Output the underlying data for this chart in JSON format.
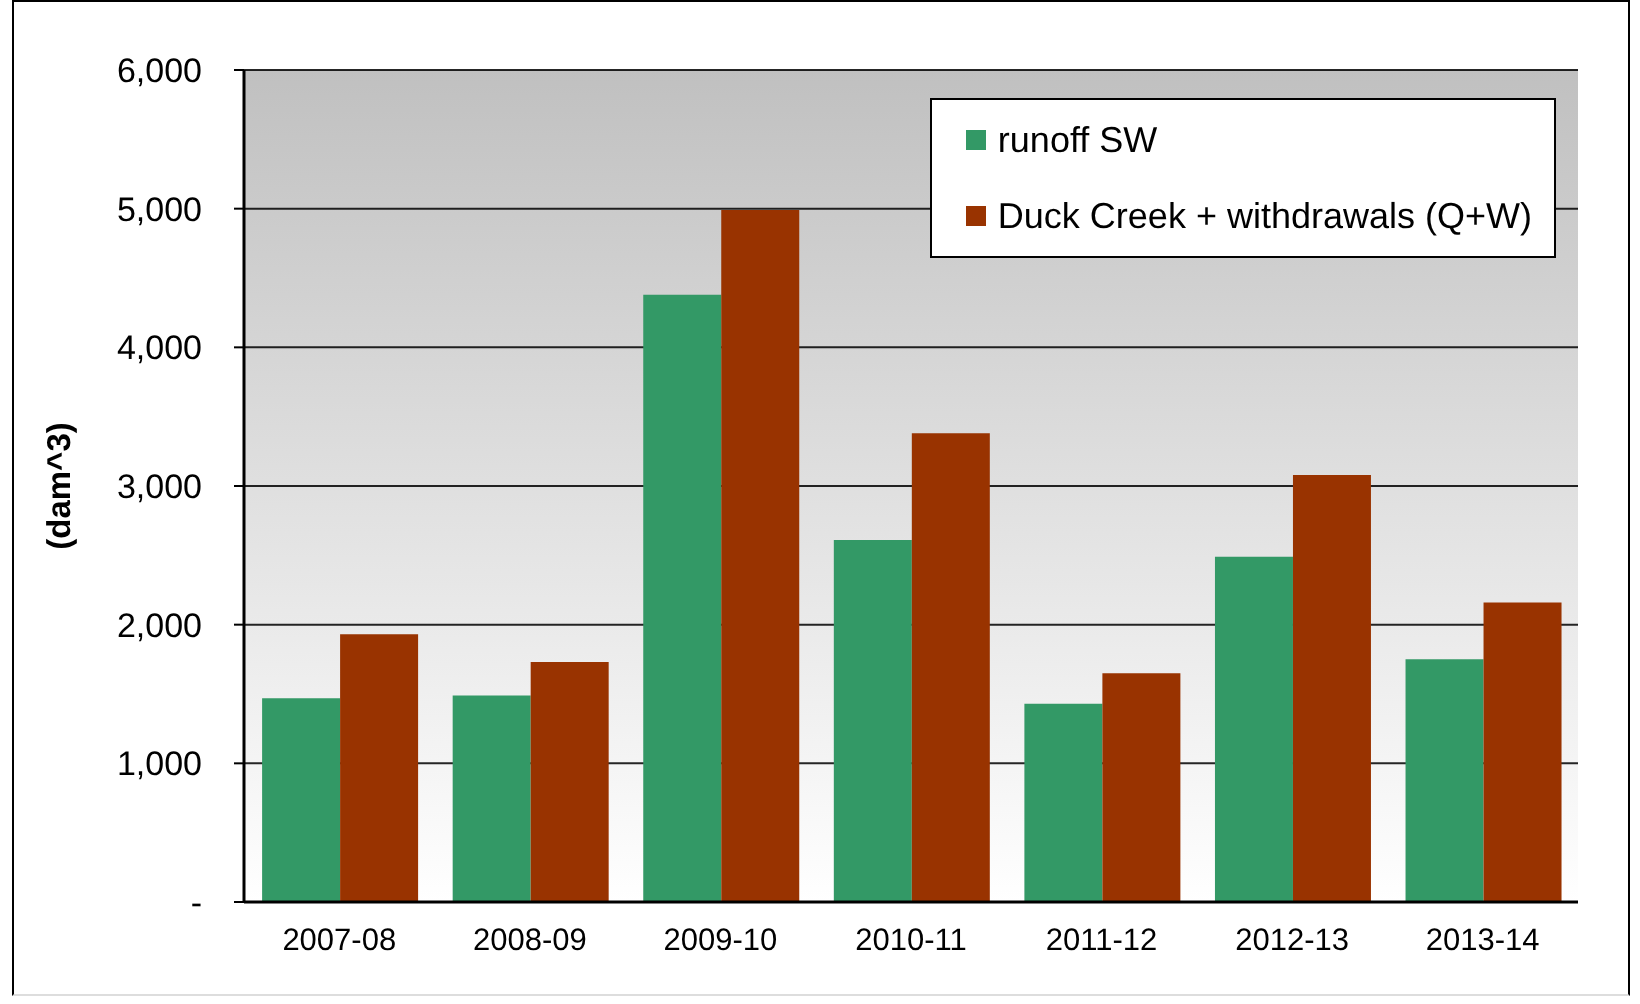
{
  "chart_data": {
    "type": "bar",
    "ylabel": "(dam^3)",
    "categories": [
      "2007-08",
      "2008-09",
      "2009-10",
      "2010-11",
      "2011-12",
      "2012-13",
      "2013-14"
    ],
    "series": [
      {
        "name": "runoff SW",
        "color": "#339966",
        "values": [
          1470,
          1490,
          4380,
          2610,
          1430,
          2490,
          1750
        ]
      },
      {
        "name": "Duck Creek + withdrawals (Q+W)",
        "color": "#993300",
        "values": [
          1930,
          1730,
          4990,
          3380,
          1650,
          3080,
          2160
        ]
      }
    ],
    "ylim": [
      0,
      6000
    ],
    "yticks": [
      {
        "value": 0,
        "label": "-"
      },
      {
        "value": 1000,
        "label": "1,000"
      },
      {
        "value": 2000,
        "label": "2,000"
      },
      {
        "value": 3000,
        "label": "3,000"
      },
      {
        "value": 4000,
        "label": "4,000"
      },
      {
        "value": 5000,
        "label": "5,000"
      },
      {
        "value": 6000,
        "label": "6,000"
      }
    ],
    "grid": "y",
    "legend": "top right"
  }
}
